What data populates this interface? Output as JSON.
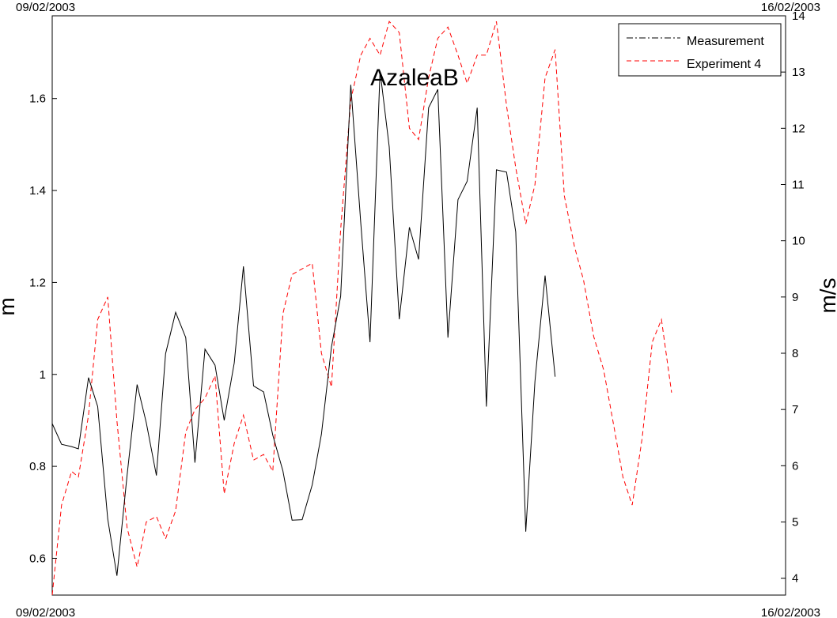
{
  "chart_data": {
    "type": "line",
    "title": "AzaleaB",
    "date_labels": {
      "top_left": "09/02/2003",
      "top_right": "16/02/2003",
      "bottom_left": "09/02/2003",
      "bottom_right": "16/02/2003"
    },
    "ylabel_left": "m",
    "ylabel_right": "m/s",
    "ylim_left": [
      0.52,
      1.78
    ],
    "ylim_right": [
      3.7,
      14.0
    ],
    "yticks_left": [
      "0.6",
      "0.8",
      "1",
      "1.2",
      "1.4",
      "1.6"
    ],
    "yticks_right": [
      "4",
      "5",
      "6",
      "7",
      "8",
      "9",
      "10",
      "11",
      "12",
      "13",
      "14"
    ],
    "grid": false,
    "legend_position": "top-right",
    "series": [
      {
        "name": "Measurement",
        "axis": "left",
        "color": "#000000",
        "style": "solid",
        "x": [
          0.0,
          0.17,
          0.353,
          0.478,
          0.662,
          0.829,
          1.013,
          1.18,
          1.364,
          1.548,
          1.715,
          1.899,
          2.066,
          2.25,
          2.434,
          2.601,
          2.785,
          2.968,
          3.135,
          3.319,
          3.486,
          3.67,
          3.854,
          4.021,
          4.205,
          4.372,
          4.556,
          4.74,
          4.907,
          5.091,
          5.258,
          5.442,
          5.625,
          5.793,
          5.976,
          6.144,
          6.327,
          6.511,
          6.678,
          6.862,
          7.029,
          7.213,
          7.397,
          7.564,
          7.747,
          7.915,
          8.098,
          8.282,
          8.449,
          8.633,
          8.8,
          8.984,
          9.168,
          9.335,
          9.519,
          9.686,
          9.87,
          10.053,
          10.221,
          10.404,
          10.572,
          10.755,
          10.939,
          11.106,
          11.29,
          11.457
        ],
        "y": [
          0.893,
          0.848,
          0.843,
          0.838,
          0.993,
          0.93,
          0.685,
          0.562,
          0.78,
          0.978,
          0.895,
          0.78,
          1.045,
          1.135,
          1.08,
          0.808,
          1.055,
          1.02,
          0.9,
          1.025,
          1.235,
          0.975,
          0.962,
          0.868,
          0.79,
          0.683,
          0.684,
          0.76,
          0.87,
          1.06,
          1.17,
          1.63,
          1.33,
          1.07,
          1.66,
          1.495,
          1.12,
          1.32,
          1.25,
          1.58,
          1.62,
          1.08,
          1.38,
          1.42,
          1.58,
          0.93,
          1.445,
          1.44,
          1.31,
          0.658,
          0.985,
          1.215,
          0.995,
          null,
          null,
          null,
          null,
          null,
          null,
          null,
          null,
          null,
          null,
          null,
          null,
          null
        ]
      },
      {
        "name": "Experiment 4",
        "axis": "right",
        "color": "#ff0000",
        "style": "dashed",
        "x": [
          0.0,
          0.17,
          0.353,
          0.478,
          0.662,
          0.829,
          1.013,
          1.18,
          1.364,
          1.548,
          1.715,
          1.899,
          2.066,
          2.25,
          2.434,
          2.601,
          2.785,
          2.968,
          3.135,
          3.319,
          3.486,
          3.67,
          3.854,
          4.021,
          4.205,
          4.372,
          4.556,
          4.74,
          4.907,
          5.091,
          5.258,
          5.442,
          5.625,
          5.793,
          5.976,
          6.144,
          6.327,
          6.511,
          6.678,
          6.862,
          7.029,
          7.213,
          7.397,
          7.564,
          7.747,
          7.915,
          8.098,
          8.282,
          8.449,
          8.633,
          8.8,
          8.984,
          9.168,
          9.335,
          9.519,
          9.686,
          9.87,
          10.053,
          10.221,
          10.404,
          10.572,
          10.755,
          10.939,
          11.106,
          11.29,
          11.457
        ],
        "y": [
          3.7,
          5.3,
          5.9,
          5.8,
          6.9,
          8.6,
          9.0,
          6.8,
          4.9,
          4.2,
          5.0,
          5.1,
          4.7,
          5.2,
          6.6,
          7.0,
          7.2,
          7.6,
          5.5,
          6.4,
          6.9,
          6.1,
          6.2,
          5.9,
          8.7,
          9.4,
          9.5,
          9.6,
          8.0,
          7.4,
          10.2,
          12.5,
          13.3,
          13.6,
          13.3,
          13.9,
          13.7,
          12.0,
          11.8,
          12.9,
          13.6,
          13.8,
          13.3,
          12.8,
          13.3,
          13.3,
          13.9,
          12.4,
          11.3,
          10.3,
          11.0,
          12.9,
          13.4,
          10.8,
          9.9,
          9.3,
          8.3,
          7.7,
          6.8,
          5.8,
          5.3,
          6.5,
          8.2,
          8.6,
          7.3,
          null
        ]
      }
    ]
  }
}
